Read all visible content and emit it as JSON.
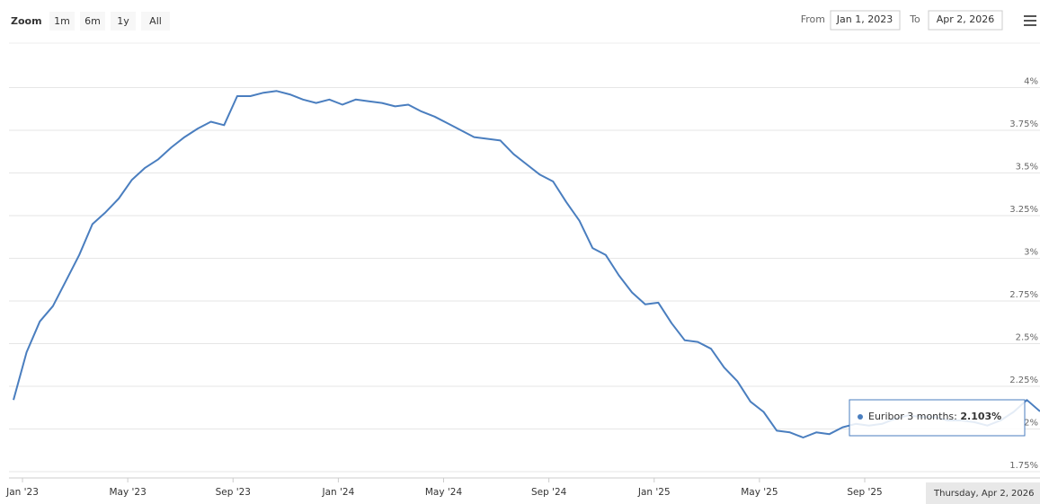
{
  "toolbar": {
    "zoom_label": "Zoom",
    "buttons": [
      "1m",
      "6m",
      "1y",
      "All"
    ],
    "from_label": "From",
    "from": "Jan 1, 2023",
    "to_label": "To",
    "to": "Apr 2, 2026"
  },
  "chart_data": {
    "type": "line",
    "color": "#4a7ebf",
    "categories": [
      "Jan '23",
      null,
      null,
      null,
      null,
      null,
      null,
      null,
      "May '23",
      null,
      null,
      null,
      null,
      null,
      null,
      null,
      "Sep '23",
      null,
      null,
      null,
      null,
      null,
      null,
      null,
      "Jan '24",
      null,
      null,
      null,
      null,
      null,
      null,
      null,
      "May '24",
      null,
      null,
      null,
      null,
      null,
      null,
      null,
      "Sep '24",
      null,
      null,
      null,
      null,
      null,
      null,
      null,
      "Jan '25",
      null,
      null,
      null,
      null,
      null,
      null,
      null,
      "May '25",
      null,
      null,
      null,
      null,
      null,
      null,
      null,
      "Sep '25",
      null,
      null,
      null,
      null,
      null,
      null,
      null,
      null,
      null,
      null,
      null,
      null,
      null,
      null
    ],
    "values": [
      2.17,
      2.45,
      2.63,
      2.72,
      2.87,
      3.02,
      3.2,
      3.27,
      3.35,
      3.46,
      3.53,
      3.58,
      3.65,
      3.71,
      3.76,
      3.8,
      3.78,
      3.95,
      3.95,
      3.97,
      3.98,
      3.96,
      3.93,
      3.91,
      3.93,
      3.9,
      3.93,
      3.92,
      3.91,
      3.89,
      3.9,
      3.86,
      3.83,
      3.79,
      3.75,
      3.71,
      3.7,
      3.69,
      3.61,
      3.55,
      3.49,
      3.45,
      3.33,
      3.22,
      3.06,
      3.02,
      2.9,
      2.8,
      2.73,
      2.74,
      2.62,
      2.52,
      2.51,
      2.47,
      2.36,
      2.28,
      2.16,
      2.1,
      1.99,
      1.98,
      1.95,
      1.98,
      1.97,
      2.01,
      2.03,
      2.02,
      2.03,
      2.06,
      2.08,
      2.07,
      2.07,
      2.05,
      2.05,
      2.04,
      2.02,
      2.05,
      2.1,
      2.17,
      2.103
    ],
    "ylim": [
      1.75,
      4.25
    ],
    "yticks": [
      {
        "value": 1.75,
        "label": "1.75%"
      },
      {
        "value": 2,
        "label": "2%"
      },
      {
        "value": 2.25,
        "label": "2.25%"
      },
      {
        "value": 2.5,
        "label": "2.5%"
      },
      {
        "value": 2.75,
        "label": "2.75%"
      },
      {
        "value": 3,
        "label": "3%"
      },
      {
        "value": 3.25,
        "label": "3.25%"
      },
      {
        "value": 3.5,
        "label": "3.5%"
      },
      {
        "value": 3.75,
        "label": "3.75%"
      },
      {
        "value": 4,
        "label": "4%"
      }
    ],
    "grid": true,
    "tooltip": {
      "text": "Euribor 3 months:",
      "value_label": "2.103%",
      "date": "Thursday, Apr 2, 2026"
    }
  }
}
